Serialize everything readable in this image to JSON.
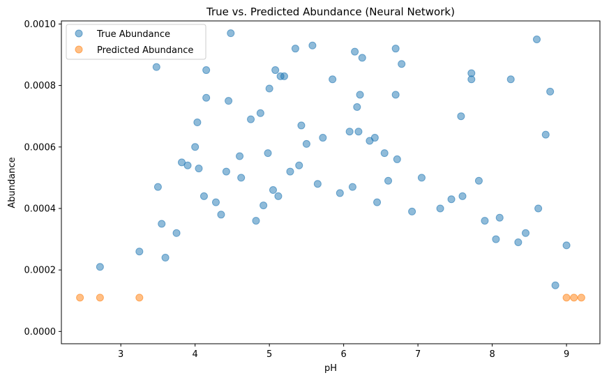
{
  "chart_data": {
    "type": "scatter",
    "title": "True vs. Predicted Abundance (Neural Network)",
    "xlabel": "pH",
    "ylabel": "Abundance",
    "xlim": [
      2.2,
      9.45
    ],
    "ylim": [
      -4e-05,
      0.00101
    ],
    "x_ticks": [
      3,
      4,
      5,
      6,
      7,
      8,
      9
    ],
    "y_ticks": [
      0.0,
      0.0002,
      0.0004,
      0.0006,
      0.0008,
      0.001
    ],
    "x_tick_labels": [
      "3",
      "4",
      "5",
      "6",
      "7",
      "8",
      "9"
    ],
    "y_tick_labels": [
      "0.0000",
      "0.0002",
      "0.0004",
      "0.0006",
      "0.0008",
      "0.0010"
    ],
    "grid": false,
    "legend_position": "top-left",
    "series": [
      {
        "name": "True Abundance",
        "color": "#1f77b4",
        "alpha": 0.5,
        "x": [
          4.48,
          5.58,
          5.35,
          6.15,
          6.25,
          6.7,
          8.6,
          3.48,
          4.15,
          5.08,
          5.15,
          5.2,
          6.78,
          7.72,
          8.25,
          7.72,
          5.85,
          5.0,
          4.15,
          4.45,
          6.22,
          6.7,
          8.78,
          4.88,
          4.75,
          6.18,
          4.03,
          7.58,
          8.72,
          5.43,
          5.72,
          6.2,
          6.42,
          6.08,
          4.6,
          5.5,
          6.35,
          3.9,
          4.05,
          7.82,
          6.55,
          3.82,
          4.0,
          4.62,
          4.42,
          5.05,
          6.72,
          4.98,
          4.12,
          4.28,
          3.5,
          3.55,
          3.25,
          2.72,
          9.0,
          8.1,
          7.3,
          5.95,
          5.65,
          4.35,
          4.92,
          6.92,
          7.45,
          8.35,
          8.62,
          6.12,
          5.28,
          3.75,
          4.82,
          5.12,
          6.45,
          7.05,
          7.9,
          8.45,
          3.6,
          5.4,
          6.6,
          7.6,
          8.05,
          8.85
        ],
        "y": [
          0.00097,
          0.00093,
          0.00092,
          0.00091,
          0.00089,
          0.00092,
          0.00095,
          0.00086,
          0.00085,
          0.00085,
          0.00083,
          0.00083,
          0.00087,
          0.00084,
          0.00082,
          0.00082,
          0.00082,
          0.00079,
          0.00076,
          0.00075,
          0.00077,
          0.00077,
          0.00078,
          0.00071,
          0.00069,
          0.00073,
          0.00068,
          0.0007,
          0.00064,
          0.00067,
          0.00063,
          0.00065,
          0.00063,
          0.00065,
          0.00057,
          0.00061,
          0.00062,
          0.00054,
          0.00053,
          0.00049,
          0.00058,
          0.00055,
          0.0006,
          0.0005,
          0.00052,
          0.00046,
          0.00056,
          0.00058,
          0.00044,
          0.00042,
          0.00047,
          0.00035,
          0.00026,
          0.00021,
          0.00028,
          0.00037,
          0.0004,
          0.00045,
          0.00048,
          0.00038,
          0.00041,
          0.00039,
          0.00043,
          0.00029,
          0.0004,
          0.00047,
          0.00052,
          0.00032,
          0.00036,
          0.00044,
          0.00042,
          0.0005,
          0.00036,
          0.00032,
          0.00024,
          0.00054,
          0.00049,
          0.00044,
          0.0003,
          0.00015
        ]
      },
      {
        "name": "Predicted Abundance",
        "color": "#ff7f0e",
        "alpha": 0.5,
        "x": [
          2.45,
          2.72,
          3.25,
          9.0,
          9.1,
          9.2
        ],
        "y": [
          0.00011,
          0.00011,
          0.00011,
          0.00011,
          0.00011,
          0.00011
        ]
      }
    ]
  }
}
